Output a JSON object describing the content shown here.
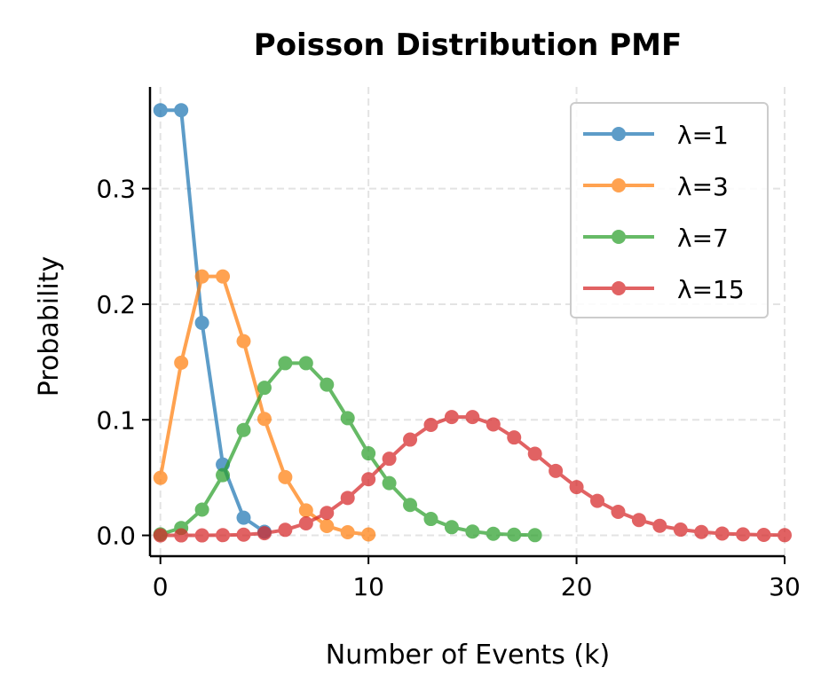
{
  "chart_data": {
    "type": "line",
    "title": "Poisson Distribution PMF",
    "xlabel": "Number of Events (k)",
    "ylabel": "Probability",
    "xlim": [
      -0.5,
      30
    ],
    "ylim": [
      -0.018,
      0.388
    ],
    "xticks": [
      0,
      10,
      20,
      30
    ],
    "yticks": [
      0.0,
      0.1,
      0.2,
      0.3
    ],
    "xtick_labels": [
      "0",
      "10",
      "20",
      "30"
    ],
    "ytick_labels": [
      "0.0",
      "0.1",
      "0.2",
      "0.3"
    ],
    "grid": true,
    "grid_style": "dashed",
    "legend_position": "top-right",
    "series": [
      {
        "name": "λ=1",
        "color": "#1f77b4",
        "x": [
          0,
          1,
          2,
          3,
          4,
          5
        ],
        "values": [
          0.3679,
          0.3679,
          0.1839,
          0.0613,
          0.0153,
          0.0031
        ]
      },
      {
        "name": "λ=3",
        "color": "#ff7f0e",
        "x": [
          0,
          1,
          2,
          3,
          4,
          5,
          6,
          7,
          8,
          9,
          10
        ],
        "values": [
          0.0498,
          0.1494,
          0.224,
          0.224,
          0.168,
          0.1008,
          0.0504,
          0.0216,
          0.0081,
          0.0027,
          0.0008
        ]
      },
      {
        "name": "λ=7",
        "color": "#2ca02c",
        "x": [
          0,
          1,
          2,
          3,
          4,
          5,
          6,
          7,
          8,
          9,
          10,
          11,
          12,
          13,
          14,
          15,
          16,
          17,
          18
        ],
        "values": [
          0.0009,
          0.0064,
          0.0223,
          0.0521,
          0.0912,
          0.1277,
          0.149,
          0.149,
          0.1304,
          0.1014,
          0.071,
          0.0452,
          0.0263,
          0.0142,
          0.0071,
          0.0033,
          0.0014,
          0.0006,
          0.0002
        ]
      },
      {
        "name": "λ=15",
        "color": "#d62728",
        "x": [
          0,
          1,
          2,
          3,
          4,
          5,
          6,
          7,
          8,
          9,
          10,
          11,
          12,
          13,
          14,
          15,
          16,
          17,
          18,
          19,
          20,
          21,
          22,
          23,
          24,
          25,
          26,
          27,
          28,
          29,
          30
        ],
        "values": [
          0.0,
          0.0,
          0.0,
          0.0002,
          0.0006,
          0.0019,
          0.0048,
          0.0104,
          0.0194,
          0.0324,
          0.0486,
          0.0663,
          0.0829,
          0.0956,
          0.1024,
          0.1024,
          0.096,
          0.0847,
          0.0706,
          0.0558,
          0.0418,
          0.0299,
          0.0204,
          0.0133,
          0.0083,
          0.005,
          0.0029,
          0.0016,
          0.0009,
          0.0004,
          0.0002
        ]
      }
    ]
  }
}
